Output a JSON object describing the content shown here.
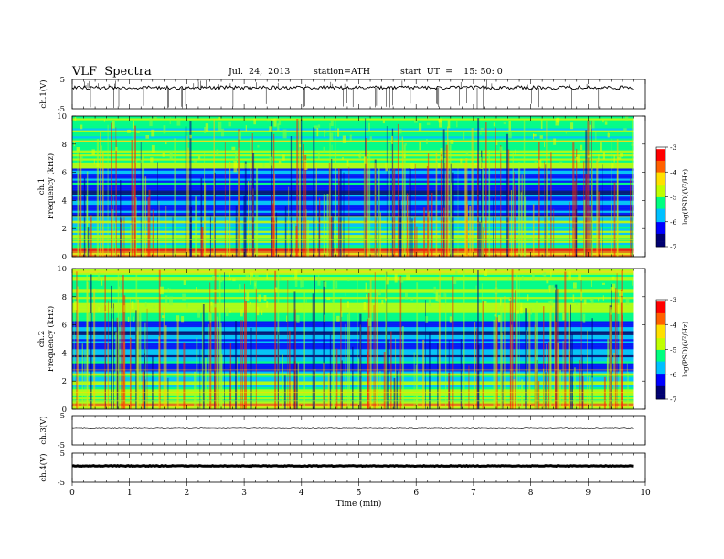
{
  "header": {
    "title": "VLF  Spectra",
    "date": "Jul.  24,  2013",
    "station": "station=ATH",
    "start_ut": "start  UT  =    15: 50: 0"
  },
  "chart_data": [
    {
      "type": "line",
      "panel": "ch1-waveform",
      "ylabel": "ch.1(V)",
      "ylim": [
        -5,
        5
      ],
      "y_ticks": [
        "5",
        "-5"
      ],
      "baseline_v": 2.2,
      "xlim": [
        0,
        10
      ],
      "data_end_min": 9.8,
      "color": "#000000"
    },
    {
      "type": "heatmap",
      "panel": "ch1-spectrogram",
      "ylabel_lines": [
        "ch.1",
        "Frequency  (kHz)"
      ],
      "ylim": [
        0,
        10
      ],
      "y_ticks": [
        "0",
        "2",
        "4",
        "6",
        "8",
        "10"
      ],
      "xlim": [
        0,
        10
      ],
      "data_end_min": 9.8,
      "colorbar": {
        "label": "log(PSD)(V²/Hz)",
        "range": [
          -7,
          -3
        ],
        "ticks": [
          "-3",
          "-4",
          "-5",
          "-6",
          "-7"
        ],
        "colors": [
          "#000070",
          "#0000ff",
          "#00c0ff",
          "#00ff80",
          "#c0ff00",
          "#ffe000",
          "#ff6000",
          "#ff0000",
          "#ffffff"
        ]
      }
    },
    {
      "type": "heatmap",
      "panel": "ch2-spectrogram",
      "ylabel_lines": [
        "ch.2",
        "Frequency  (kHz)"
      ],
      "ylim": [
        0,
        10
      ],
      "y_ticks": [
        "0",
        "2",
        "4",
        "6",
        "8",
        "10"
      ],
      "xlim": [
        0,
        10
      ],
      "data_end_min": 9.8,
      "colorbar": {
        "label": "log(PSD)(V²/Hz)",
        "range": [
          -7,
          -3
        ],
        "ticks": [
          "-3",
          "-4",
          "-5",
          "-6",
          "-7"
        ],
        "colors": [
          "#000070",
          "#0000ff",
          "#00c0ff",
          "#00ff80",
          "#c0ff00",
          "#ffe000",
          "#ff6000",
          "#ff0000",
          "#ffffff"
        ]
      }
    },
    {
      "type": "line",
      "panel": "ch3-waveform",
      "ylabel": "ch.3(V)",
      "ylim": [
        -5,
        5
      ],
      "y_ticks": [
        "5",
        "-5"
      ],
      "baseline_v": 0.6,
      "xlim": [
        0,
        10
      ],
      "data_end_min": 9.8,
      "color": "#000000"
    },
    {
      "type": "line",
      "panel": "ch4-waveform",
      "ylabel": "ch.4(V)",
      "ylim": [
        -5,
        5
      ],
      "y_ticks": [
        "5",
        "-5"
      ],
      "baseline_v": 0.6,
      "xlim": [
        0,
        10
      ],
      "data_end_min": 9.8,
      "color": "#000000"
    }
  ],
  "x_axis": {
    "label": "Time  (min)",
    "ticks": [
      "0",
      "1",
      "2",
      "3",
      "4",
      "5",
      "6",
      "7",
      "8",
      "9",
      "10"
    ]
  }
}
